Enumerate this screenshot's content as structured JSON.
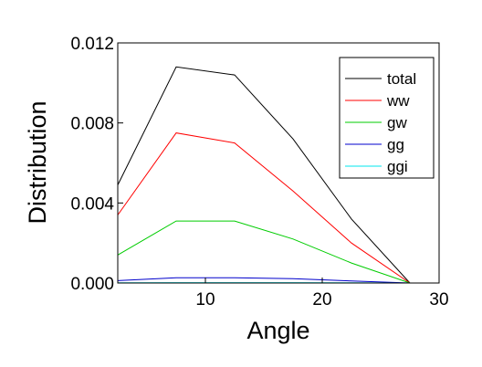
{
  "chart_data": {
    "type": "line",
    "xlabel": "Angle",
    "ylabel": "Distribution",
    "xlim": [
      2.5,
      30
    ],
    "ylim": [
      0,
      0.012
    ],
    "xticks": [
      10,
      20,
      30
    ],
    "xtick_labels": [
      "10",
      "20",
      "30"
    ],
    "yticks": [
      0,
      0.004,
      0.008,
      0.012
    ],
    "ytick_labels": [
      "0.000",
      "0.004",
      "0.008",
      "0.012"
    ],
    "grid": false,
    "legend_position": "top-right",
    "x": [
      2.5,
      7.5,
      12.5,
      17.5,
      22.5,
      27.5,
      30
    ],
    "series": [
      {
        "name": "total",
        "color": "#000000",
        "values": [
          0.0049,
          0.0108,
          0.0104,
          0.0072,
          0.0032,
          0.0,
          0.0
        ]
      },
      {
        "name": "ww",
        "color": "#ff0000",
        "values": [
          0.0034,
          0.0075,
          0.007,
          0.0046,
          0.002,
          0.0,
          0.0
        ]
      },
      {
        "name": "gw",
        "color": "#00cc00",
        "values": [
          0.0014,
          0.0031,
          0.0031,
          0.0022,
          0.001,
          0.0,
          0.0
        ]
      },
      {
        "name": "gg",
        "color": "#0000cc",
        "values": [
          0.00012,
          0.00026,
          0.00026,
          0.00022,
          0.0001,
          0.0,
          0.0
        ]
      },
      {
        "name": "ggi",
        "color": "#00e5ee",
        "values": [
          1e-05,
          2e-05,
          2e-05,
          2e-05,
          1e-05,
          0.0,
          0.0
        ]
      }
    ]
  }
}
